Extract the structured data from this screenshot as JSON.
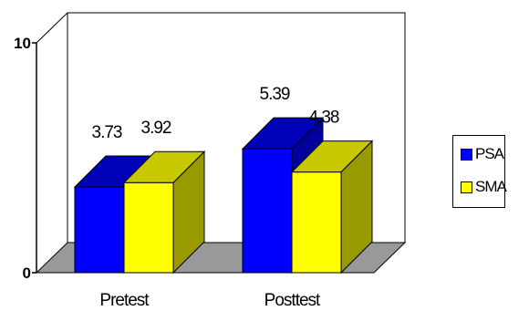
{
  "chart_data": {
    "type": "bar",
    "title": "",
    "xlabel": "",
    "ylabel": "",
    "categories": [
      "Pretest",
      "Posttest"
    ],
    "ylim": [
      0,
      10
    ],
    "yticks": [
      0,
      10
    ],
    "grid": false,
    "legend_position": "right",
    "series": [
      {
        "name": "PSA",
        "values": [
          3.73,
          5.39
        ],
        "color": "#0000ff",
        "side_color": "#00009a",
        "top_color": "#0000b8"
      },
      {
        "name": "SMA",
        "values": [
          3.92,
          4.38
        ],
        "color": "#ffff00",
        "side_color": "#999900",
        "top_color": "#c8c800"
      }
    ],
    "data_labels": [
      [
        "3.73",
        "5.39"
      ],
      [
        "3.92",
        "4.38"
      ]
    ],
    "floor_color": "#999999"
  }
}
